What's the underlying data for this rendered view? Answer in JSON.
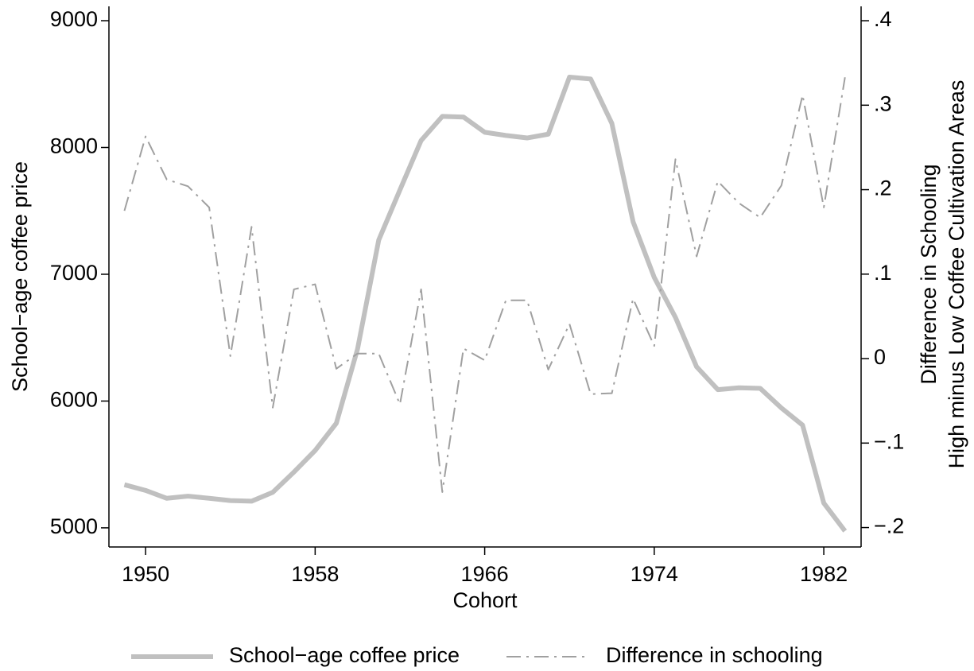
{
  "chart_data": {
    "type": "line",
    "x": [
      1949,
      1950,
      1951,
      1952,
      1953,
      1954,
      1955,
      1956,
      1957,
      1958,
      1959,
      1960,
      1961,
      1962,
      1963,
      1964,
      1965,
      1966,
      1967,
      1968,
      1969,
      1970,
      1971,
      1972,
      1973,
      1974,
      1975,
      1976,
      1977,
      1978,
      1979,
      1980,
      1981,
      1982,
      1983
    ],
    "series": [
      {
        "name": "School−age coffee price",
        "color": "#c0c0c0",
        "style": "solid",
        "values": [
          5340,
          5295,
          5233,
          5250,
          5233,
          5215,
          5210,
          5280,
          5440,
          5610,
          5825,
          6410,
          7270,
          7665,
          8055,
          8245,
          8240,
          8120,
          8095,
          8075,
          8105,
          8555,
          8540,
          8190,
          7415,
          6975,
          6660,
          6270,
          6090,
          6105,
          6100,
          5945,
          5810,
          5195,
          4975
        ]
      },
      {
        "name": "Difference in schooling",
        "color": "#a0a0a0",
        "style": "dashdot",
        "axis": "y2",
        "values": [
          0.175,
          0.263,
          0.212,
          0.204,
          0.179,
          0.003,
          0.156,
          -0.058,
          0.082,
          0.088,
          -0.012,
          0.006,
          0.006,
          -0.054,
          0.082,
          -0.158,
          0.012,
          -0.002,
          0.069,
          0.069,
          -0.013,
          0.041,
          -0.042,
          -0.041,
          0.071,
          0.015,
          0.236,
          0.121,
          0.21,
          0.184,
          0.167,
          0.205,
          0.312,
          0.179,
          0.333
        ]
      }
    ],
    "xlabel": "Cohort",
    "ylabel": "School−age coffee price",
    "y2label": [
      "Difference in Schooling",
      "High minus Low Coffee Cultivation Areas"
    ],
    "xlim": [
      1948.27,
      1983.76
    ],
    "xticks": [
      1950,
      1958,
      1966,
      1974,
      1982
    ],
    "ylim": [
      4849,
      9113
    ],
    "yticks": [
      5000,
      6000,
      7000,
      8000,
      9000
    ],
    "y2lim": [
      -0.223,
      0.417
    ],
    "y2ticks": [
      {
        "value": -0.2,
        "label": "−.2"
      },
      {
        "value": -0.1,
        "label": "−.1"
      },
      0,
      {
        "value": 0.1,
        "label": ".1"
      },
      {
        "value": 0.2,
        "label": ".2"
      },
      {
        "value": 0.3,
        "label": ".3"
      },
      {
        "value": 0.4,
        "label": ".4"
      }
    ],
    "grid": false,
    "legend": "bottom"
  }
}
